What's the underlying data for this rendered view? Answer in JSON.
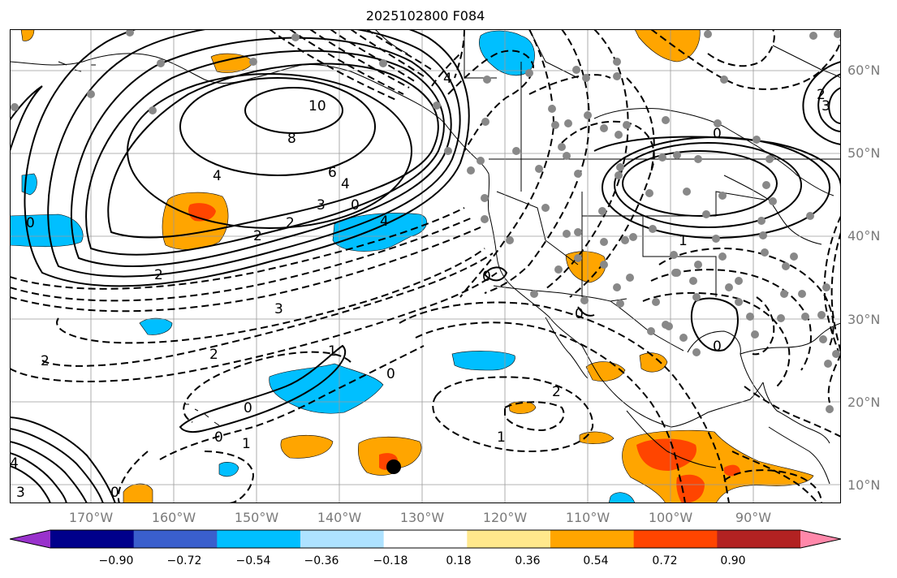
{
  "title": "2025102800 F084",
  "map": {
    "lat_labels": [
      "60°N",
      "50°N",
      "40°N",
      "30°N",
      "20°N",
      "10°N"
    ],
    "lon_labels": [
      "170°W",
      "160°W",
      "150°W",
      "140°W",
      "130°W",
      "120°W",
      "110°W",
      "100°W",
      "90°W"
    ],
    "contour_labels": [
      "10",
      "8",
      "6",
      "4",
      "4",
      "3",
      "2",
      "2",
      "0",
      "4",
      "4",
      "2",
      "0",
      "3",
      "2",
      "2",
      "1",
      "0",
      "0",
      "1",
      "0",
      "2",
      "1",
      "0",
      "0",
      "0",
      "0",
      "1",
      "4",
      "3",
      "0",
      "2",
      "3"
    ],
    "colors": {
      "solid_contour": "#000000",
      "dashed_contour": "#000000",
      "grid": "#9a9a9a",
      "station_dot": "#888888",
      "negative_fill": "#00bfff",
      "positive_fill": "#ffa500",
      "strong_positive_fill": "#ff4500",
      "marker": "#000000"
    }
  },
  "colorbar": {
    "tick_labels": [
      "−0.90",
      "−0.72",
      "−0.54",
      "−0.36",
      "−0.18",
      "0.18",
      "0.36",
      "0.54",
      "0.72",
      "0.90"
    ],
    "colors": [
      "#9932cc",
      "#00008b",
      "#3a5fcd",
      "#00bfff",
      "#aee2ff",
      "#ffffff",
      "#ffe88c",
      "#ffa500",
      "#ff4500",
      "#b22222",
      "#ff88aa"
    ]
  }
}
